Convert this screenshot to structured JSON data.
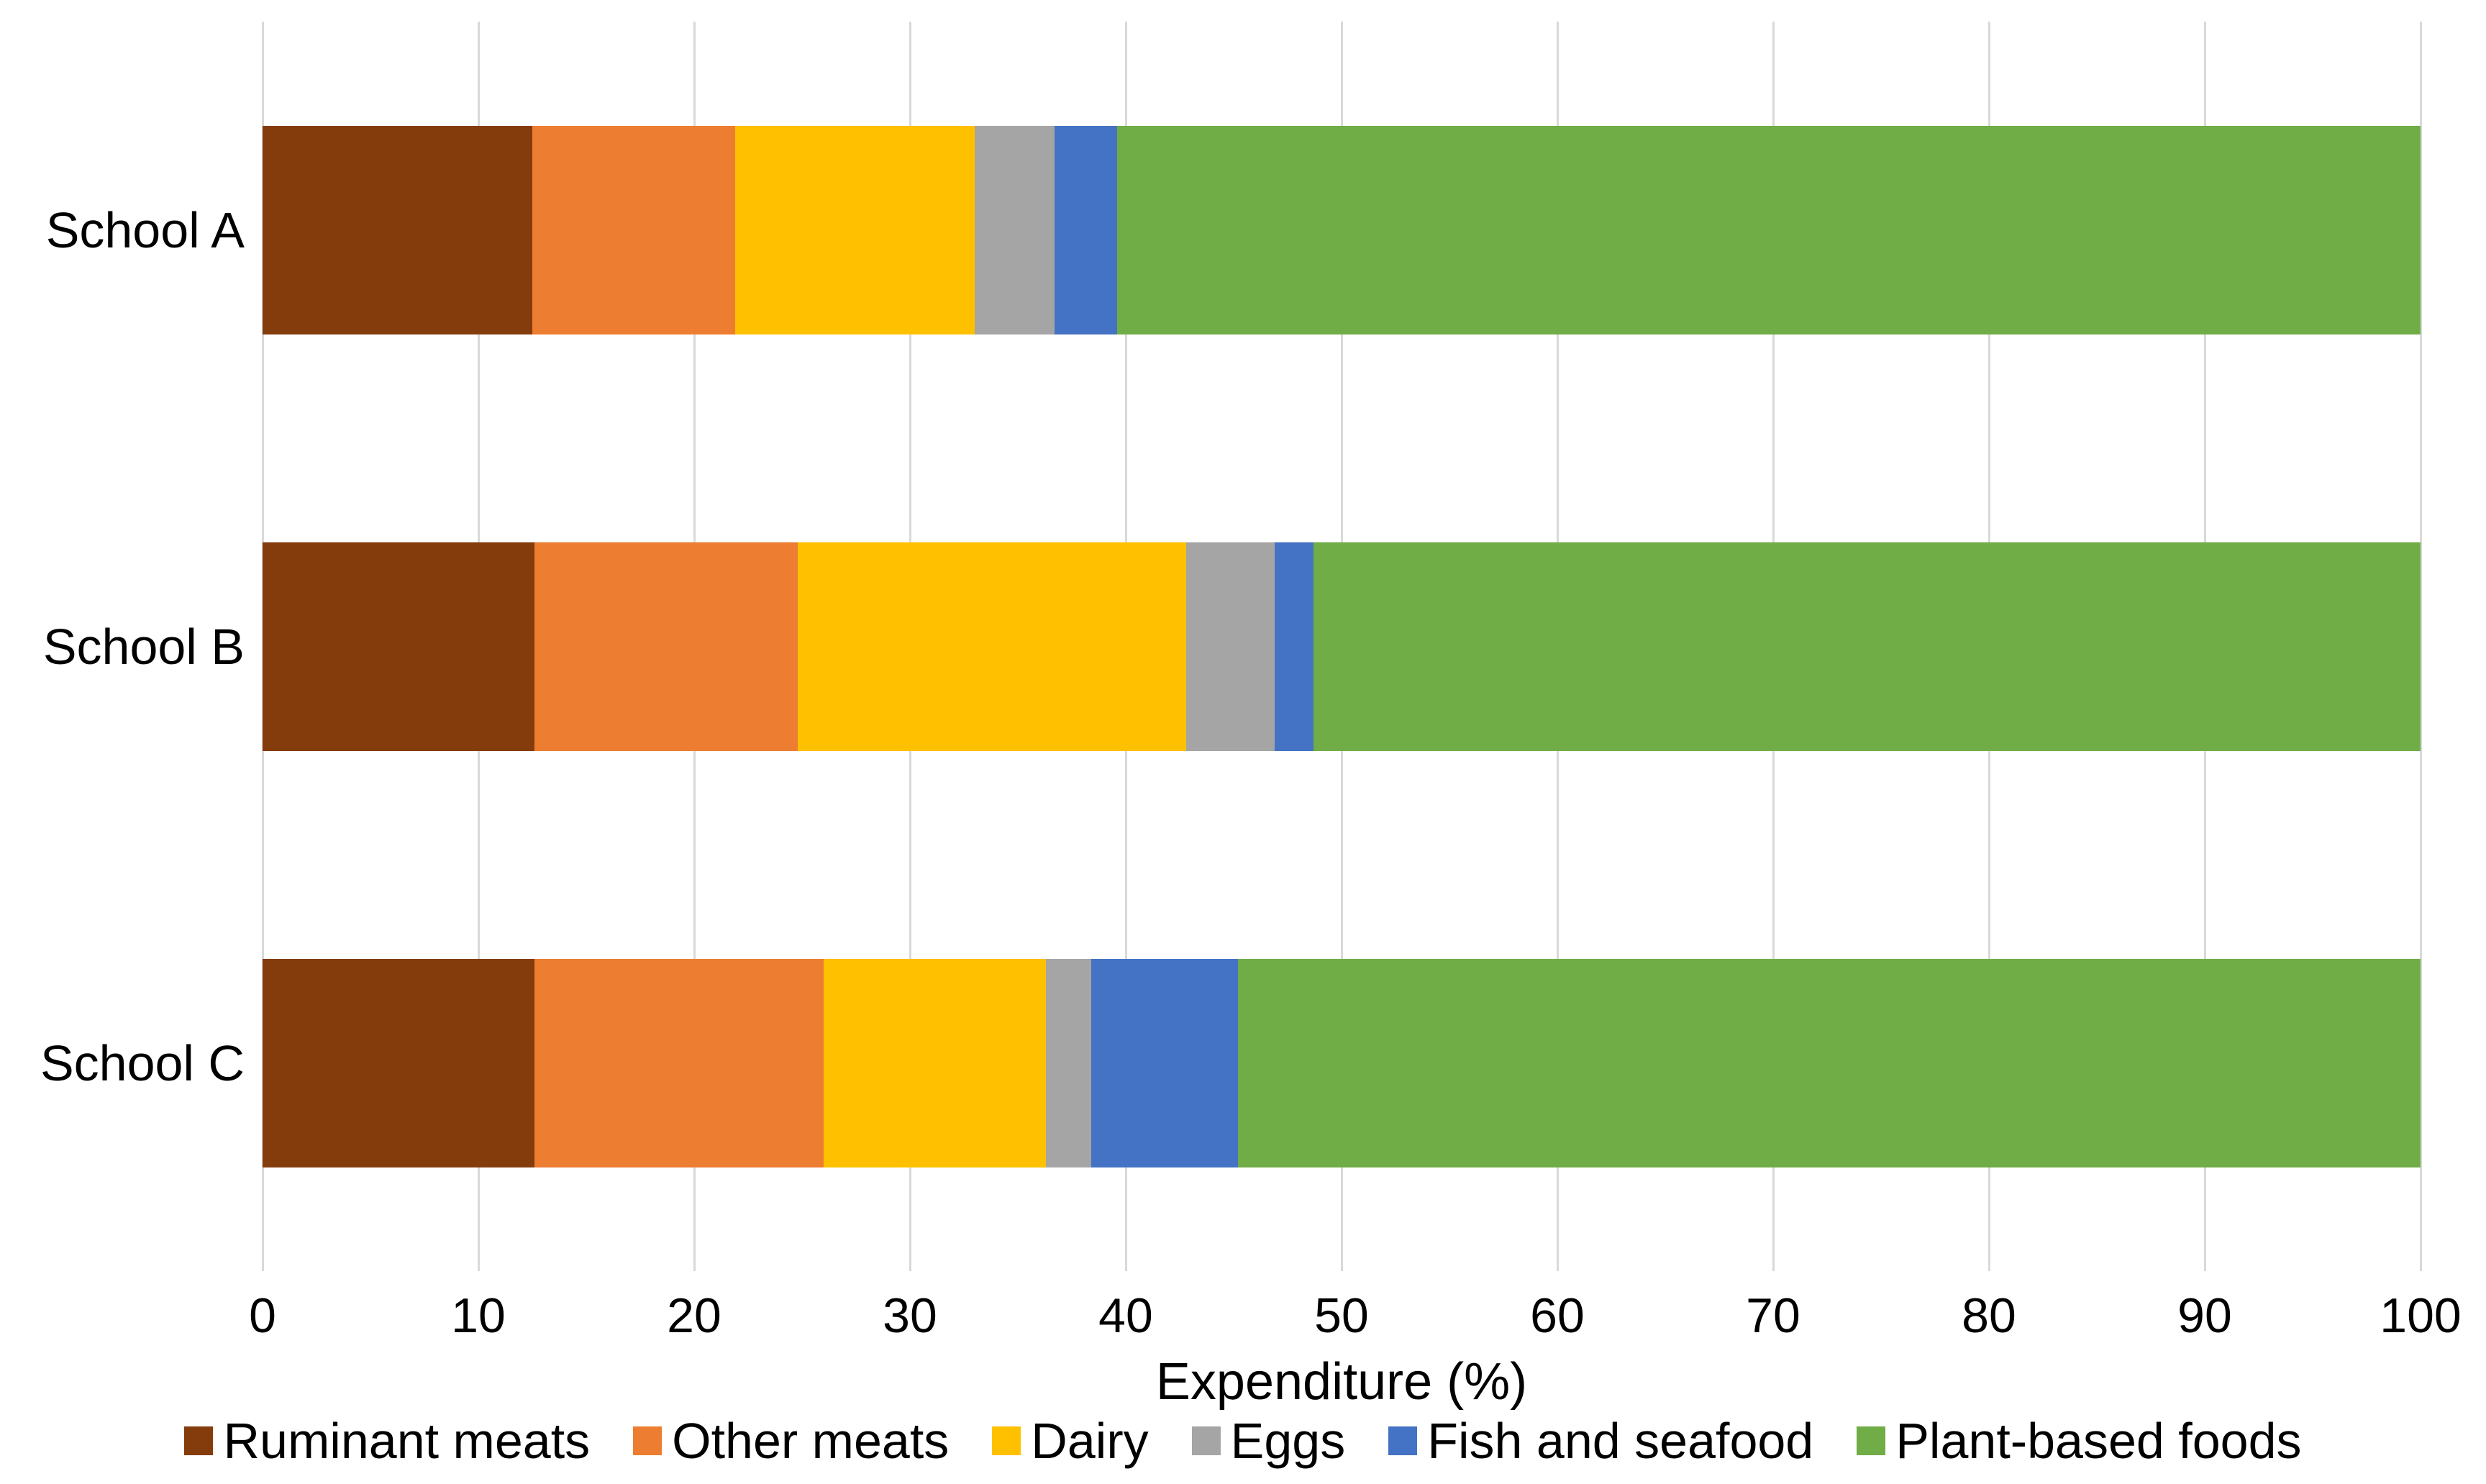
{
  "chart_data": {
    "type": "bar",
    "orientation": "horizontal",
    "stacked": true,
    "title": "",
    "xlabel": "Expenditure (%)",
    "ylabel": "",
    "xlim": [
      0,
      100
    ],
    "x_ticks": [
      0,
      10,
      20,
      30,
      40,
      50,
      60,
      70,
      80,
      90,
      100
    ],
    "grid": "vertical",
    "gridline_color": "#D9D9D9",
    "legend_position": "bottom",
    "categories": [
      "School A",
      "School B",
      "School C"
    ],
    "series": [
      {
        "name": "Ruminant meats",
        "color": "#843C0C",
        "values": [
          12.5,
          12.6,
          12.6
        ]
      },
      {
        "name": "Other meats",
        "color": "#ED7D31",
        "values": [
          9.4,
          12.2,
          13.4
        ]
      },
      {
        "name": "Dairy",
        "color": "#FFC000",
        "values": [
          11.1,
          18.0,
          10.3
        ]
      },
      {
        "name": "Eggs",
        "color": "#A5A5A5",
        "values": [
          3.7,
          4.1,
          2.1
        ]
      },
      {
        "name": "Fish and seafood",
        "color": "#4472C4",
        "values": [
          2.9,
          1.8,
          6.8
        ]
      },
      {
        "name": "Plant-based foods",
        "color": "#70AD47",
        "values": [
          60.4,
          51.3,
          54.8
        ]
      }
    ]
  }
}
